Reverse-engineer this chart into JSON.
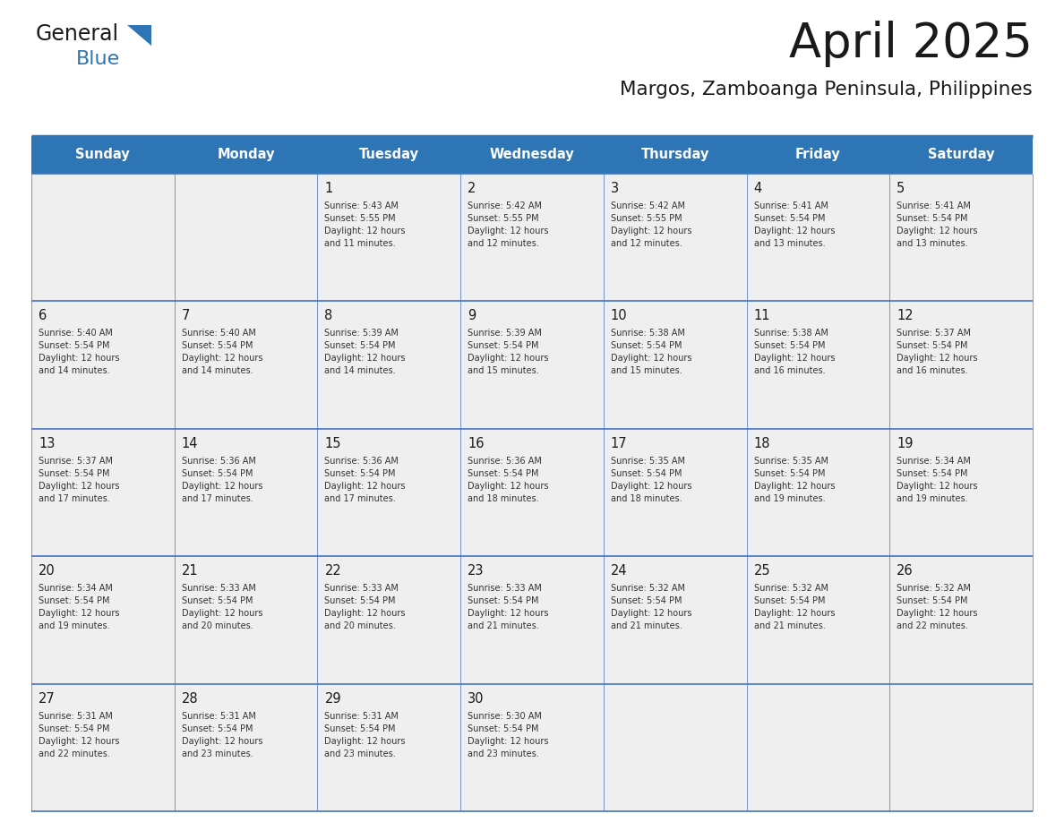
{
  "title": "April 2025",
  "subtitle": "Margos, Zamboanga Peninsula, Philippines",
  "header_bg": "#2E75B6",
  "header_text_color": "#FFFFFF",
  "cell_bg": "#EFEFEF",
  "cell_bg_empty_top": "#F5F5F5",
  "border_color": "#2E75B6",
  "row_line_color": "#4472C4",
  "days_of_week": [
    "Sunday",
    "Monday",
    "Tuesday",
    "Wednesday",
    "Thursday",
    "Friday",
    "Saturday"
  ],
  "title_color": "#1A1A1A",
  "subtitle_color": "#1A1A1A",
  "day_num_color": "#1A1A1A",
  "cell_text_color": "#333333",
  "logo_general_color": "#1A1A1A",
  "logo_blue_color": "#2E75B6",
  "logo_triangle_color": "#2E75B6",
  "calendar": [
    [
      {
        "day": "",
        "sunrise": "",
        "sunset": "",
        "daylight": ""
      },
      {
        "day": "",
        "sunrise": "",
        "sunset": "",
        "daylight": ""
      },
      {
        "day": "1",
        "sunrise": "Sunrise: 5:43 AM",
        "sunset": "Sunset: 5:55 PM",
        "daylight": "Daylight: 12 hours\nand 11 minutes."
      },
      {
        "day": "2",
        "sunrise": "Sunrise: 5:42 AM",
        "sunset": "Sunset: 5:55 PM",
        "daylight": "Daylight: 12 hours\nand 12 minutes."
      },
      {
        "day": "3",
        "sunrise": "Sunrise: 5:42 AM",
        "sunset": "Sunset: 5:55 PM",
        "daylight": "Daylight: 12 hours\nand 12 minutes."
      },
      {
        "day": "4",
        "sunrise": "Sunrise: 5:41 AM",
        "sunset": "Sunset: 5:54 PM",
        "daylight": "Daylight: 12 hours\nand 13 minutes."
      },
      {
        "day": "5",
        "sunrise": "Sunrise: 5:41 AM",
        "sunset": "Sunset: 5:54 PM",
        "daylight": "Daylight: 12 hours\nand 13 minutes."
      }
    ],
    [
      {
        "day": "6",
        "sunrise": "Sunrise: 5:40 AM",
        "sunset": "Sunset: 5:54 PM",
        "daylight": "Daylight: 12 hours\nand 14 minutes."
      },
      {
        "day": "7",
        "sunrise": "Sunrise: 5:40 AM",
        "sunset": "Sunset: 5:54 PM",
        "daylight": "Daylight: 12 hours\nand 14 minutes."
      },
      {
        "day": "8",
        "sunrise": "Sunrise: 5:39 AM",
        "sunset": "Sunset: 5:54 PM",
        "daylight": "Daylight: 12 hours\nand 14 minutes."
      },
      {
        "day": "9",
        "sunrise": "Sunrise: 5:39 AM",
        "sunset": "Sunset: 5:54 PM",
        "daylight": "Daylight: 12 hours\nand 15 minutes."
      },
      {
        "day": "10",
        "sunrise": "Sunrise: 5:38 AM",
        "sunset": "Sunset: 5:54 PM",
        "daylight": "Daylight: 12 hours\nand 15 minutes."
      },
      {
        "day": "11",
        "sunrise": "Sunrise: 5:38 AM",
        "sunset": "Sunset: 5:54 PM",
        "daylight": "Daylight: 12 hours\nand 16 minutes."
      },
      {
        "day": "12",
        "sunrise": "Sunrise: 5:37 AM",
        "sunset": "Sunset: 5:54 PM",
        "daylight": "Daylight: 12 hours\nand 16 minutes."
      }
    ],
    [
      {
        "day": "13",
        "sunrise": "Sunrise: 5:37 AM",
        "sunset": "Sunset: 5:54 PM",
        "daylight": "Daylight: 12 hours\nand 17 minutes."
      },
      {
        "day": "14",
        "sunrise": "Sunrise: 5:36 AM",
        "sunset": "Sunset: 5:54 PM",
        "daylight": "Daylight: 12 hours\nand 17 minutes."
      },
      {
        "day": "15",
        "sunrise": "Sunrise: 5:36 AM",
        "sunset": "Sunset: 5:54 PM",
        "daylight": "Daylight: 12 hours\nand 17 minutes."
      },
      {
        "day": "16",
        "sunrise": "Sunrise: 5:36 AM",
        "sunset": "Sunset: 5:54 PM",
        "daylight": "Daylight: 12 hours\nand 18 minutes."
      },
      {
        "day": "17",
        "sunrise": "Sunrise: 5:35 AM",
        "sunset": "Sunset: 5:54 PM",
        "daylight": "Daylight: 12 hours\nand 18 minutes."
      },
      {
        "day": "18",
        "sunrise": "Sunrise: 5:35 AM",
        "sunset": "Sunset: 5:54 PM",
        "daylight": "Daylight: 12 hours\nand 19 minutes."
      },
      {
        "day": "19",
        "sunrise": "Sunrise: 5:34 AM",
        "sunset": "Sunset: 5:54 PM",
        "daylight": "Daylight: 12 hours\nand 19 minutes."
      }
    ],
    [
      {
        "day": "20",
        "sunrise": "Sunrise: 5:34 AM",
        "sunset": "Sunset: 5:54 PM",
        "daylight": "Daylight: 12 hours\nand 19 minutes."
      },
      {
        "day": "21",
        "sunrise": "Sunrise: 5:33 AM",
        "sunset": "Sunset: 5:54 PM",
        "daylight": "Daylight: 12 hours\nand 20 minutes."
      },
      {
        "day": "22",
        "sunrise": "Sunrise: 5:33 AM",
        "sunset": "Sunset: 5:54 PM",
        "daylight": "Daylight: 12 hours\nand 20 minutes."
      },
      {
        "day": "23",
        "sunrise": "Sunrise: 5:33 AM",
        "sunset": "Sunset: 5:54 PM",
        "daylight": "Daylight: 12 hours\nand 21 minutes."
      },
      {
        "day": "24",
        "sunrise": "Sunrise: 5:32 AM",
        "sunset": "Sunset: 5:54 PM",
        "daylight": "Daylight: 12 hours\nand 21 minutes."
      },
      {
        "day": "25",
        "sunrise": "Sunrise: 5:32 AM",
        "sunset": "Sunset: 5:54 PM",
        "daylight": "Daylight: 12 hours\nand 21 minutes."
      },
      {
        "day": "26",
        "sunrise": "Sunrise: 5:32 AM",
        "sunset": "Sunset: 5:54 PM",
        "daylight": "Daylight: 12 hours\nand 22 minutes."
      }
    ],
    [
      {
        "day": "27",
        "sunrise": "Sunrise: 5:31 AM",
        "sunset": "Sunset: 5:54 PM",
        "daylight": "Daylight: 12 hours\nand 22 minutes."
      },
      {
        "day": "28",
        "sunrise": "Sunrise: 5:31 AM",
        "sunset": "Sunset: 5:54 PM",
        "daylight": "Daylight: 12 hours\nand 23 minutes."
      },
      {
        "day": "29",
        "sunrise": "Sunrise: 5:31 AM",
        "sunset": "Sunset: 5:54 PM",
        "daylight": "Daylight: 12 hours\nand 23 minutes."
      },
      {
        "day": "30",
        "sunrise": "Sunrise: 5:30 AM",
        "sunset": "Sunset: 5:54 PM",
        "daylight": "Daylight: 12 hours\nand 23 minutes."
      },
      {
        "day": "",
        "sunrise": "",
        "sunset": "",
        "daylight": ""
      },
      {
        "day": "",
        "sunrise": "",
        "sunset": "",
        "daylight": ""
      },
      {
        "day": "",
        "sunrise": "",
        "sunset": "",
        "daylight": ""
      }
    ]
  ]
}
